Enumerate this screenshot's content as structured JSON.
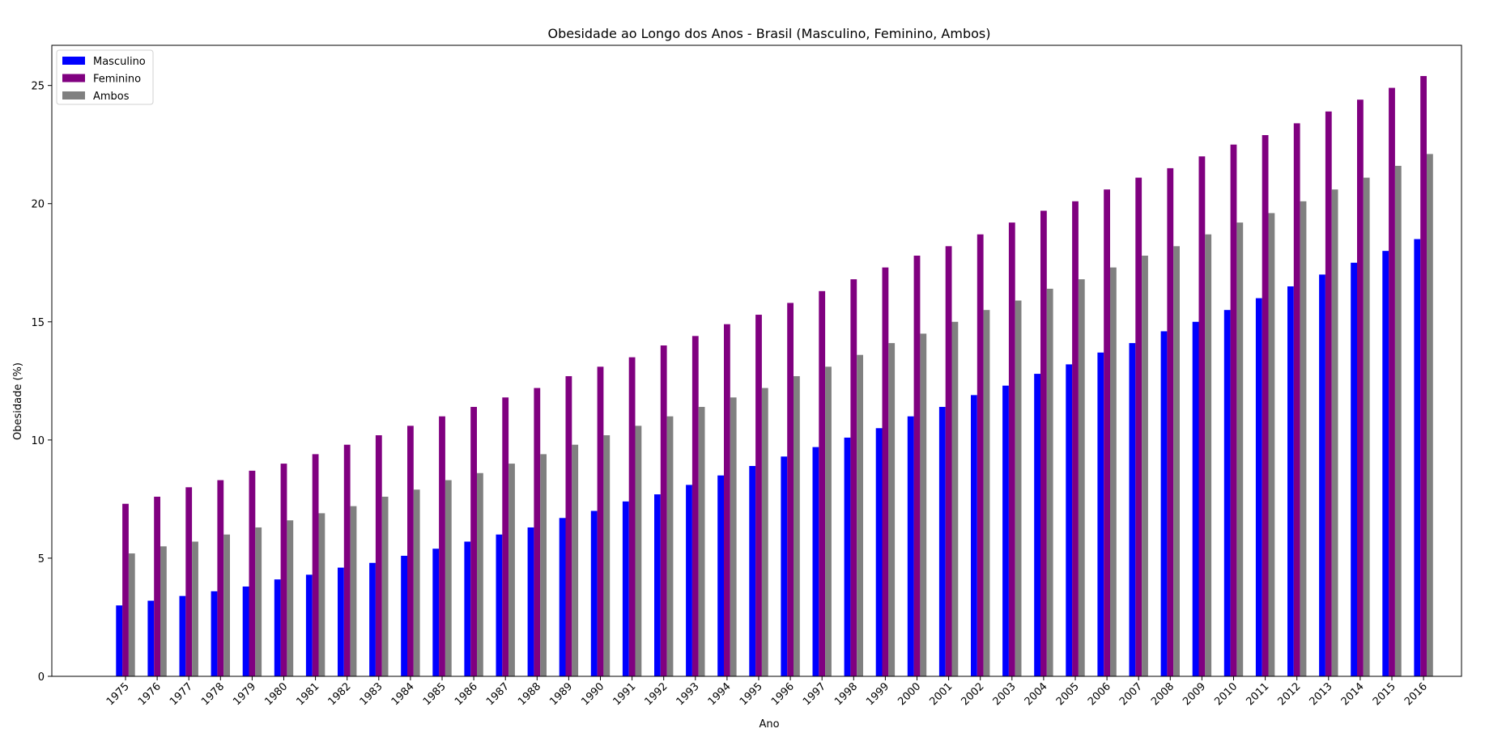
{
  "chart_data": {
    "type": "bar",
    "title": "Obesidade ao Longo dos Anos - Brasil (Masculino, Feminino, Ambos)",
    "xlabel": "Ano",
    "ylabel": "Obesidade (%)",
    "ylim": [
      0,
      26.7
    ],
    "yticks": [
      0,
      5,
      10,
      15,
      20,
      25
    ],
    "grid": false,
    "legend_position": "upper-left",
    "categories": [
      "1975",
      "1976",
      "1977",
      "1978",
      "1979",
      "1980",
      "1981",
      "1982",
      "1983",
      "1984",
      "1985",
      "1986",
      "1987",
      "1988",
      "1989",
      "1990",
      "1991",
      "1992",
      "1993",
      "1994",
      "1995",
      "1996",
      "1997",
      "1998",
      "1999",
      "2000",
      "2001",
      "2002",
      "2003",
      "2004",
      "2005",
      "2006",
      "2007",
      "2008",
      "2009",
      "2010",
      "2011",
      "2012",
      "2013",
      "2014",
      "2015",
      "2016"
    ],
    "series": [
      {
        "name": "Masculino",
        "color": "#0000ff",
        "values": [
          3.0,
          3.2,
          3.4,
          3.6,
          3.8,
          4.1,
          4.3,
          4.6,
          4.8,
          5.1,
          5.4,
          5.7,
          6.0,
          6.3,
          6.7,
          7.0,
          7.4,
          7.7,
          8.1,
          8.5,
          8.9,
          9.3,
          9.7,
          10.1,
          10.5,
          11.0,
          11.4,
          11.9,
          12.3,
          12.8,
          13.2,
          13.7,
          14.1,
          14.6,
          15.0,
          15.5,
          16.0,
          16.5,
          17.0,
          17.5,
          18.0,
          18.5
        ]
      },
      {
        "name": "Feminino",
        "color": "#800080",
        "values": [
          7.3,
          7.6,
          8.0,
          8.3,
          8.7,
          9.0,
          9.4,
          9.8,
          10.2,
          10.6,
          11.0,
          11.4,
          11.8,
          12.2,
          12.7,
          13.1,
          13.5,
          14.0,
          14.4,
          14.9,
          15.3,
          15.8,
          16.3,
          16.8,
          17.3,
          17.8,
          18.2,
          18.7,
          19.2,
          19.7,
          20.1,
          20.6,
          21.1,
          21.5,
          22.0,
          22.5,
          22.9,
          23.4,
          23.9,
          24.4,
          24.9,
          25.4
        ]
      },
      {
        "name": "Ambos",
        "color": "#808080",
        "values": [
          5.2,
          5.5,
          5.7,
          6.0,
          6.3,
          6.6,
          6.9,
          7.2,
          7.6,
          7.9,
          8.3,
          8.6,
          9.0,
          9.4,
          9.8,
          10.2,
          10.6,
          11.0,
          11.4,
          11.8,
          12.2,
          12.7,
          13.1,
          13.6,
          14.1,
          14.5,
          15.0,
          15.5,
          15.9,
          16.4,
          16.8,
          17.3,
          17.8,
          18.2,
          18.7,
          19.2,
          19.6,
          20.1,
          20.6,
          21.1,
          21.6,
          22.1
        ]
      }
    ]
  }
}
